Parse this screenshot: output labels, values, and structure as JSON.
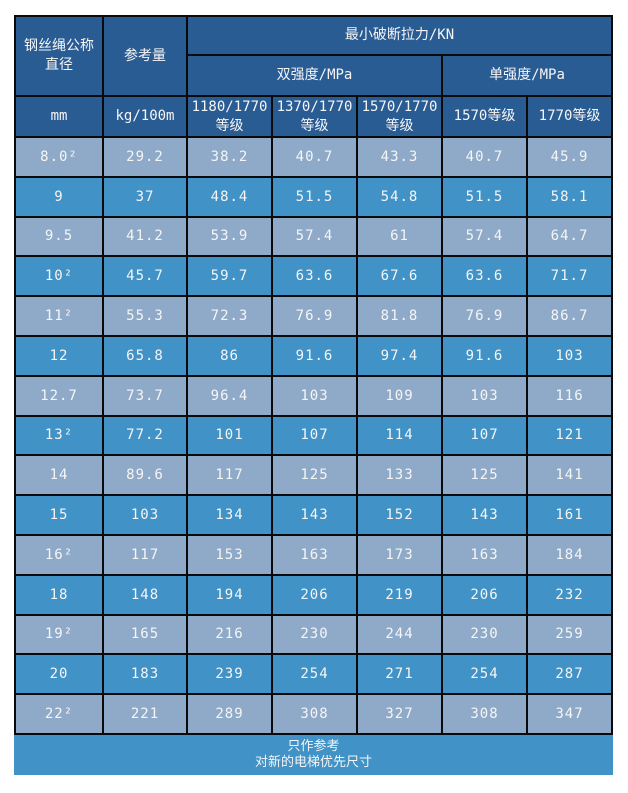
{
  "table": {
    "header": {
      "col1_title": "钢丝绳公称\n直径",
      "col2_title": "参考量",
      "group_title": "最小破断拉力/KN",
      "dual_title": "双强度/MPa",
      "single_title": "单强度/MPa",
      "units": [
        "mm",
        "kg/100m",
        "1180/1770\n等级",
        "1370/1770\n等级",
        "1570/1770\n等级",
        "1570等级",
        "1770等级"
      ]
    },
    "rows": [
      [
        "8.0²",
        "29.2",
        "38.2",
        "40.7",
        "43.3",
        "40.7",
        "45.9"
      ],
      [
        "9",
        "37",
        "48.4",
        "51.5",
        "54.8",
        "51.5",
        "58.1"
      ],
      [
        "9.5",
        "41.2",
        "53.9",
        "57.4",
        "61",
        "57.4",
        "64.7"
      ],
      [
        "10²",
        "45.7",
        "59.7",
        "63.6",
        "67.6",
        "63.6",
        "71.7"
      ],
      [
        "11²",
        "55.3",
        "72.3",
        "76.9",
        "81.8",
        "76.9",
        "86.7"
      ],
      [
        "12",
        "65.8",
        "86",
        "91.6",
        "97.4",
        "91.6",
        "103"
      ],
      [
        "12.7",
        "73.7",
        "96.4",
        "103",
        "109",
        "103",
        "116"
      ],
      [
        "13²",
        "77.2",
        "101",
        "107",
        "114",
        "107",
        "121"
      ],
      [
        "14",
        "89.6",
        "117",
        "125",
        "133",
        "125",
        "141"
      ],
      [
        "15",
        "103",
        "134",
        "143",
        "152",
        "143",
        "161"
      ],
      [
        "16²",
        "117",
        "153",
        "163",
        "173",
        "163",
        "184"
      ],
      [
        "18",
        "148",
        "194",
        "206",
        "219",
        "206",
        "232"
      ],
      [
        "19²",
        "165",
        "216",
        "230",
        "244",
        "230",
        "259"
      ],
      [
        "20",
        "183",
        "239",
        "254",
        "271",
        "254",
        "287"
      ],
      [
        "22²",
        "221",
        "289",
        "308",
        "327",
        "308",
        "347"
      ]
    ],
    "footer_lines": [
      "只作参考",
      "对新的电梯优先尺寸"
    ]
  },
  "colors": {
    "header_bg": "#2a5c94",
    "row_light": "#8faac8",
    "row_mid": "#4192c6",
    "footer_bg": "#4192c6",
    "border": "#0a0a0a",
    "text": "#f5f5f5",
    "page_bg": "#ffffff"
  }
}
